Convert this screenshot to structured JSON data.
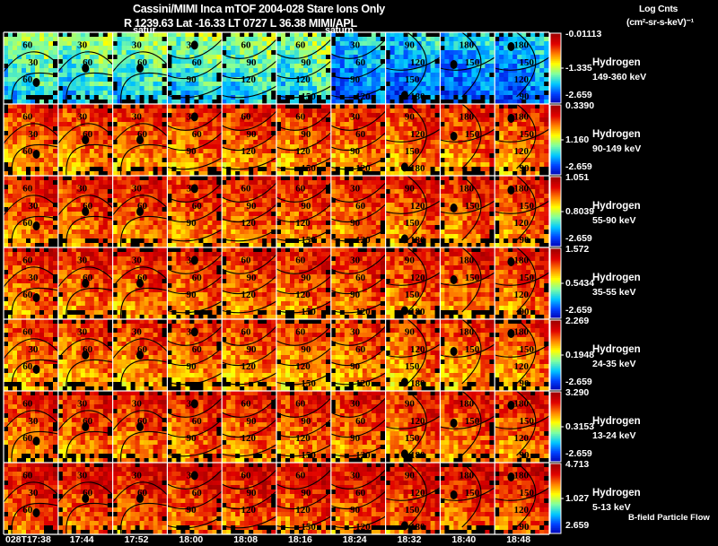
{
  "header": {
    "title_line1": "Cassini/MIMI Inca mTOF  2004-028   Stare   Ions Only",
    "title_line2": "R        1239.63 Lat -16.33 LT 0727 L        36.38  MIMI/APL",
    "units_line1": "Log Cnts",
    "units_line2": "(cm²-sr-s-keV)⁻¹",
    "footnote": "B-field Particle Flow"
  },
  "colors": {
    "background": "#000000",
    "border": "#ffffff",
    "contour": "#000000",
    "colormap": [
      "#0000b0",
      "#0040ff",
      "#00c8ff",
      "#80ffa0",
      "#ffff00",
      "#ff8000",
      "#e00000",
      "#a00000"
    ]
  },
  "chart_data": {
    "type": "heatmap",
    "title": "Cassini/MIMI Inca mTOF 2004-028 Stare Ions Only",
    "colorbar_label": "Log Cnts (cm²-sr-s-keV)⁻¹",
    "time_labels": [
      "028T17:38",
      "17:44",
      "17:52",
      "18:00",
      "18:08",
      "18:16",
      "18:24",
      "18:32",
      "18:40",
      "18:48"
    ],
    "overlay_text": [
      "satur",
      "saturn"
    ],
    "rows": [
      {
        "species": "Hydrogen",
        "energy": "149-360 keV",
        "cb_max": "-0.01113",
        "cb_mid": "-1.335",
        "cb_min": "-2.659",
        "intensity": 0.35
      },
      {
        "species": "Hydrogen",
        "energy": "90-149 keV",
        "cb_max": "0.3390",
        "cb_mid": "1.160",
        "cb_min": "-2.659",
        "intensity": 0.72
      },
      {
        "species": "Hydrogen",
        "energy": "55-90 keV",
        "cb_max": "1.051",
        "cb_mid": "0.8039",
        "cb_min": "-2.659",
        "intensity": 0.74
      },
      {
        "species": "Hydrogen",
        "energy": "35-55 keV",
        "cb_max": "1.572",
        "cb_mid": "0.5434",
        "cb_min": "-2.659",
        "intensity": 0.74
      },
      {
        "species": "Hydrogen",
        "energy": "24-35 keV",
        "cb_max": "2.269",
        "cb_mid": "0.1948",
        "cb_min": "-2.659",
        "intensity": 0.7
      },
      {
        "species": "Hydrogen",
        "energy": "13-24 keV",
        "cb_max": "3.290",
        "cb_mid": "0.3153",
        "cb_min": "-2.659",
        "intensity": 0.74
      },
      {
        "species": "Hydrogen",
        "energy": "5-13 keV",
        "cb_max": "4.713",
        "cb_mid": "1.027",
        "cb_min": "2.659",
        "intensity": 0.78
      }
    ],
    "contour_labels_by_column": [
      [
        "60",
        "30",
        "60"
      ],
      [
        "30",
        "60"
      ],
      [
        "30",
        "60"
      ],
      [
        "30",
        "60",
        "90"
      ],
      [
        "60",
        "90",
        "120"
      ],
      [
        "60",
        "90",
        "120",
        "150"
      ],
      [
        "30",
        "60",
        "90",
        "120"
      ],
      [
        "90",
        "120",
        "150",
        "180"
      ],
      [
        "180",
        "150"
      ],
      [
        "180",
        "150",
        "120",
        "90"
      ]
    ]
  }
}
